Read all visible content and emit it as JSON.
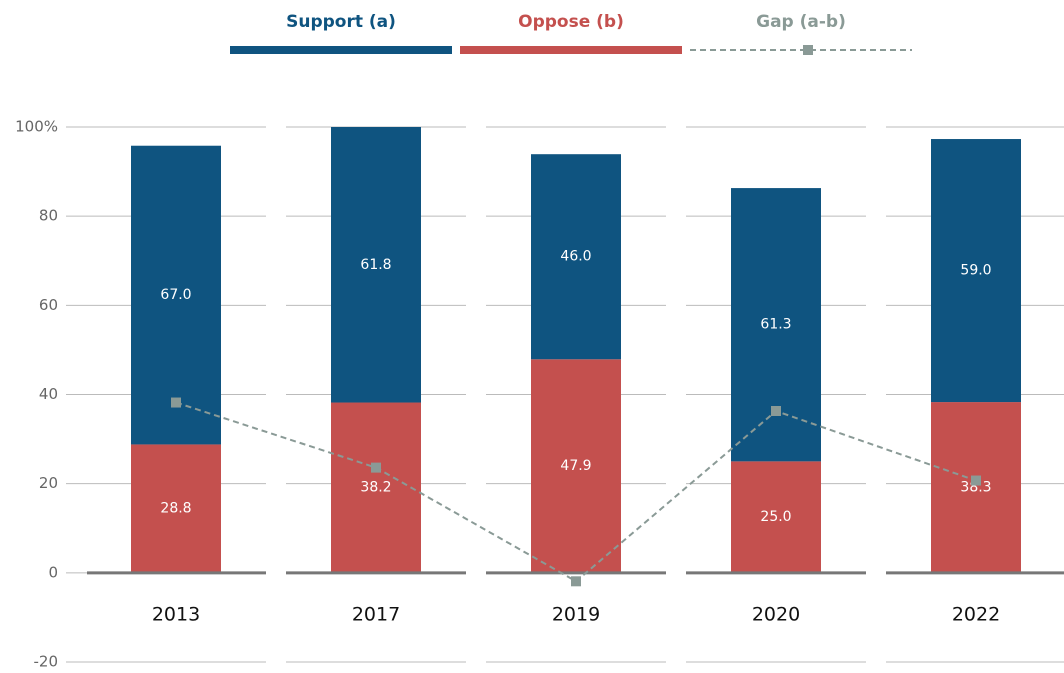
{
  "chart_data": {
    "type": "bar",
    "categories": [
      "2013",
      "2017",
      "2019",
      "2020",
      "2022"
    ],
    "series": [
      {
        "name": "Support (a)",
        "color": "#0f5480",
        "values": [
          67.0,
          61.8,
          46.0,
          61.3,
          59.0
        ],
        "value_labels": [
          "67.0",
          "61.8",
          "46.0",
          "61.3",
          "59.0"
        ]
      },
      {
        "name": "Oppose (b)",
        "color": "#c4504e",
        "values": [
          28.8,
          38.2,
          47.9,
          25.0,
          38.3
        ],
        "value_labels": [
          "28.8",
          "38.2",
          "47.9",
          "25.0",
          "38.3"
        ]
      },
      {
        "name": "Gap (a-b)",
        "color": "#8a9a96",
        "type": "line",
        "values": [
          38.2,
          23.6,
          -1.9,
          36.3,
          20.7
        ]
      }
    ],
    "ylim": [
      -20,
      100
    ],
    "yticks": [
      -20,
      0,
      20,
      40,
      60,
      80,
      {
        "value": 100,
        "label": "100%"
      }
    ],
    "grid": true,
    "stacked": true,
    "legend": "top"
  }
}
